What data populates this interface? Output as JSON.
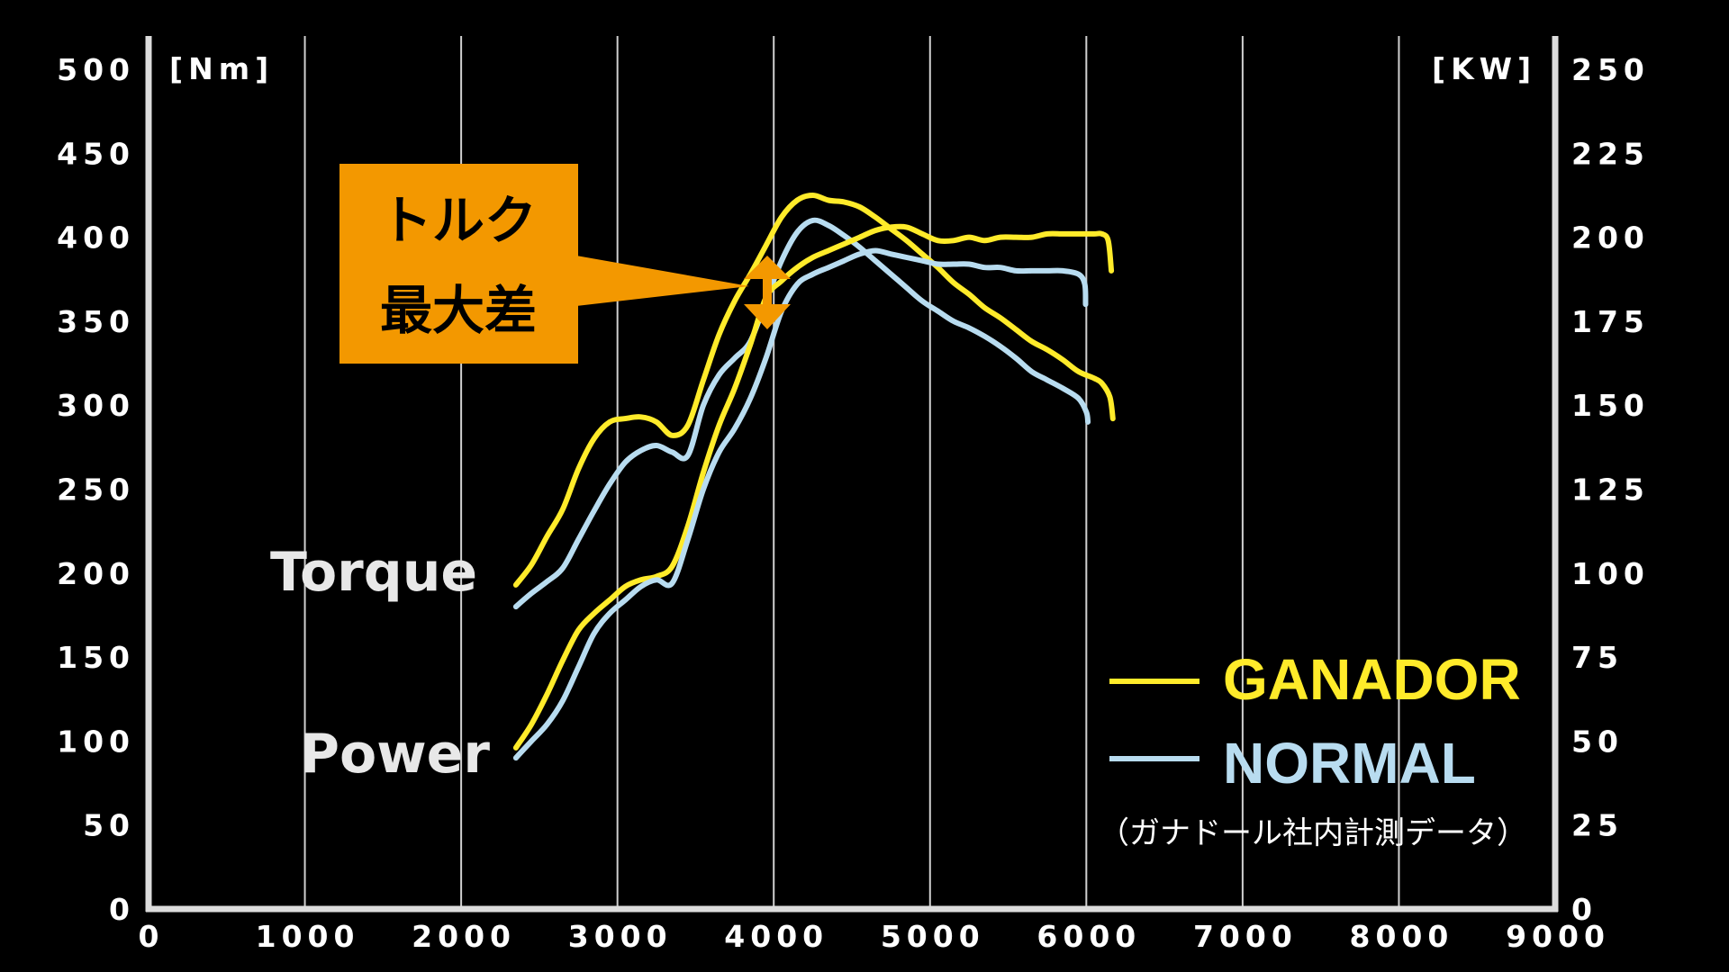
{
  "chart_data": {
    "type": "line",
    "x_ticks": [
      "0",
      "1000",
      "2000",
      "3000",
      "4000",
      "5000",
      "6000",
      "7000",
      "8000",
      "9000"
    ],
    "xlim": [
      0,
      9000
    ],
    "left_axis": {
      "unit": "[Nm]",
      "range": [
        0,
        500
      ],
      "ticks": [
        "0",
        "50",
        "100",
        "150",
        "200",
        "250",
        "300",
        "350",
        "400",
        "450",
        "500"
      ]
    },
    "right_axis": {
      "unit": "[KW]",
      "range": [
        0,
        250
      ],
      "ticks": [
        "0",
        "25",
        "50",
        "75",
        "100",
        "125",
        "150",
        "175",
        "200",
        "225",
        "250"
      ]
    },
    "grid": "vertical",
    "curve_labels": {
      "torque": "Torque",
      "power": "Power"
    },
    "callout": {
      "line1": "トルク",
      "line2": "最大差",
      "bg": "#f39800",
      "arrow_color": "#f39800"
    },
    "legend": {
      "placement": "bottom-right",
      "items": [
        {
          "label": "GANADOR",
          "color": "#ffeb2a"
        },
        {
          "label": "NORMAL",
          "color": "#b8dcf0"
        }
      ]
    },
    "note": "（ガナドール社内計測データ）",
    "series": [
      {
        "name": "GANADOR",
        "quantity": "Torque",
        "axis": "left",
        "color": "#ffeb2a",
        "x": [
          2350,
          2450,
          2550,
          2650,
          2750,
          2850,
          2950,
          3050,
          3150,
          3250,
          3350,
          3450,
          3550,
          3650,
          3750,
          3850,
          3950,
          4050,
          4150,
          4250,
          4350,
          4450,
          4550,
          4650,
          4750,
          4850,
          4950,
          5050,
          5150,
          5250,
          5350,
          5450,
          5550,
          5650,
          5750,
          5850,
          5950,
          6050,
          6100,
          6150,
          6170
        ],
        "y": [
          193,
          205,
          222,
          238,
          262,
          280,
          290,
          292,
          293,
          290,
          282,
          288,
          315,
          342,
          362,
          378,
          395,
          412,
          422,
          425,
          422,
          421,
          418,
          412,
          405,
          398,
          390,
          382,
          373,
          366,
          358,
          352,
          345,
          338,
          333,
          327,
          320,
          316,
          313,
          305,
          292
        ]
      },
      {
        "name": "NORMAL",
        "quantity": "Torque",
        "axis": "left",
        "color": "#b8dcf0",
        "x": [
          2350,
          2450,
          2550,
          2650,
          2750,
          2850,
          2950,
          3050,
          3150,
          3250,
          3350,
          3450,
          3550,
          3650,
          3750,
          3850,
          3950,
          4050,
          4150,
          4250,
          4350,
          4450,
          4550,
          4650,
          4750,
          4850,
          4950,
          5050,
          5150,
          5250,
          5350,
          5450,
          5550,
          5650,
          5750,
          5850,
          5950,
          6000,
          6010
        ],
        "y": [
          180,
          188,
          195,
          203,
          220,
          237,
          253,
          266,
          273,
          276,
          272,
          270,
          300,
          318,
          328,
          338,
          362,
          386,
          403,
          410,
          407,
          401,
          394,
          386,
          378,
          370,
          362,
          356,
          350,
          346,
          341,
          335,
          328,
          320,
          315,
          310,
          304,
          296,
          290
        ]
      },
      {
        "name": "GANADOR",
        "quantity": "Power",
        "axis": "right",
        "color": "#ffeb2a",
        "x": [
          2350,
          2450,
          2550,
          2650,
          2750,
          2850,
          2950,
          3050,
          3150,
          3250,
          3350,
          3450,
          3550,
          3650,
          3750,
          3850,
          3950,
          4050,
          4150,
          4250,
          4350,
          4450,
          4550,
          4650,
          4750,
          4850,
          4950,
          5050,
          5150,
          5250,
          5350,
          5450,
          5550,
          5650,
          5750,
          5850,
          5950,
          6050,
          6100,
          6140,
          6160
        ],
        "y": [
          48,
          55,
          64,
          74,
          83,
          88,
          92,
          96,
          98,
          99,
          102,
          114,
          130,
          144,
          155,
          168,
          182,
          187,
          191,
          194,
          196,
          198,
          200,
          202,
          203,
          203,
          201,
          199,
          199,
          200,
          199,
          200,
          200,
          200,
          201,
          201,
          201,
          201,
          201,
          199,
          190
        ]
      },
      {
        "name": "NORMAL",
        "quantity": "Power",
        "axis": "right",
        "color": "#b8dcf0",
        "x": [
          2350,
          2450,
          2550,
          2650,
          2750,
          2850,
          2950,
          3050,
          3150,
          3250,
          3350,
          3450,
          3550,
          3650,
          3750,
          3850,
          3950,
          4050,
          4150,
          4250,
          4350,
          4450,
          4550,
          4650,
          4750,
          4850,
          4950,
          5050,
          5150,
          5250,
          5350,
          5450,
          5550,
          5650,
          5750,
          5850,
          5950,
          5990,
          5995
        ],
        "y": [
          45,
          50,
          55,
          62,
          72,
          82,
          88,
          92,
          96,
          98,
          97,
          110,
          125,
          136,
          143,
          152,
          164,
          178,
          186,
          189,
          191,
          193,
          195,
          196,
          195,
          194,
          193,
          192,
          192,
          192,
          191,
          191,
          190,
          190,
          190,
          190,
          189,
          186,
          180
        ]
      }
    ]
  }
}
